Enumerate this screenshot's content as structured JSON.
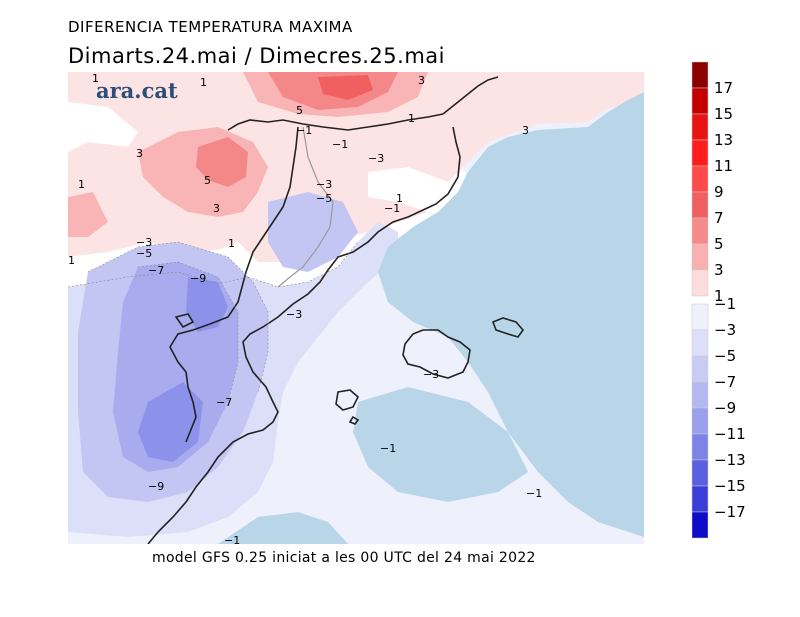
{
  "header": {
    "title": "DIFERENCIA TEMPERATURA MAXIMA",
    "subtitle": "Dimarts.24.mai / Dimecres.25.mai"
  },
  "logo": {
    "text": "ara.cat"
  },
  "footer": {
    "text": "model GFS 0.25 iniciat a les 00 UTC del 24 mai 2022"
  },
  "legend": {
    "bins": [
      {
        "color": "#8b0000"
      },
      {
        "color": "#c40000"
      },
      {
        "color": "#e81414"
      },
      {
        "color": "#ff1c1c"
      },
      {
        "color": "#ff4a4a"
      },
      {
        "color": "#f06060"
      },
      {
        "color": "#f48a8a"
      },
      {
        "color": "#f8b0b0"
      },
      {
        "color": "#fcdcdc"
      },
      {
        "color": "#ffffff"
      },
      {
        "color": "#eef0fc"
      },
      {
        "color": "#dde0f8"
      },
      {
        "color": "#c8ccf4"
      },
      {
        "color": "#b4b8f0"
      },
      {
        "color": "#9aa0ec"
      },
      {
        "color": "#7c84e8"
      },
      {
        "color": "#5a60e0"
      },
      {
        "color": "#3a3ed8"
      },
      {
        "color": "#0c0cc8"
      }
    ],
    "labels": [
      "17",
      "15",
      "13",
      "11",
      "9",
      "7",
      "5",
      "3",
      "1",
      "−1",
      "−3",
      "−5",
      "−7",
      "−9",
      "−11",
      "−13",
      "−15",
      "−17"
    ]
  },
  "colors": {
    "sea": "#b8d6e8",
    "warm1": "#fde4e4",
    "warm3": "#f9b5b5",
    "warm5": "#f48888",
    "warm7": "#f06060",
    "cold1": "#eef0fc",
    "cold3": "#dcdff8",
    "cold5": "#c3c6f3",
    "cold7": "#a8acee",
    "cold9": "#8c92ea"
  },
  "contour_labels": [
    "1",
    "1",
    "3",
    "3",
    "1",
    "5",
    "3",
    "5",
    "3",
    "1",
    "−1",
    "−1",
    "−3",
    "1",
    "1",
    "−3",
    "−5",
    "−1",
    "−3",
    "−5",
    "−7",
    "−9",
    "1",
    "−3",
    "−3",
    "−7",
    "−9",
    "−1",
    "−1",
    "−1"
  ]
}
